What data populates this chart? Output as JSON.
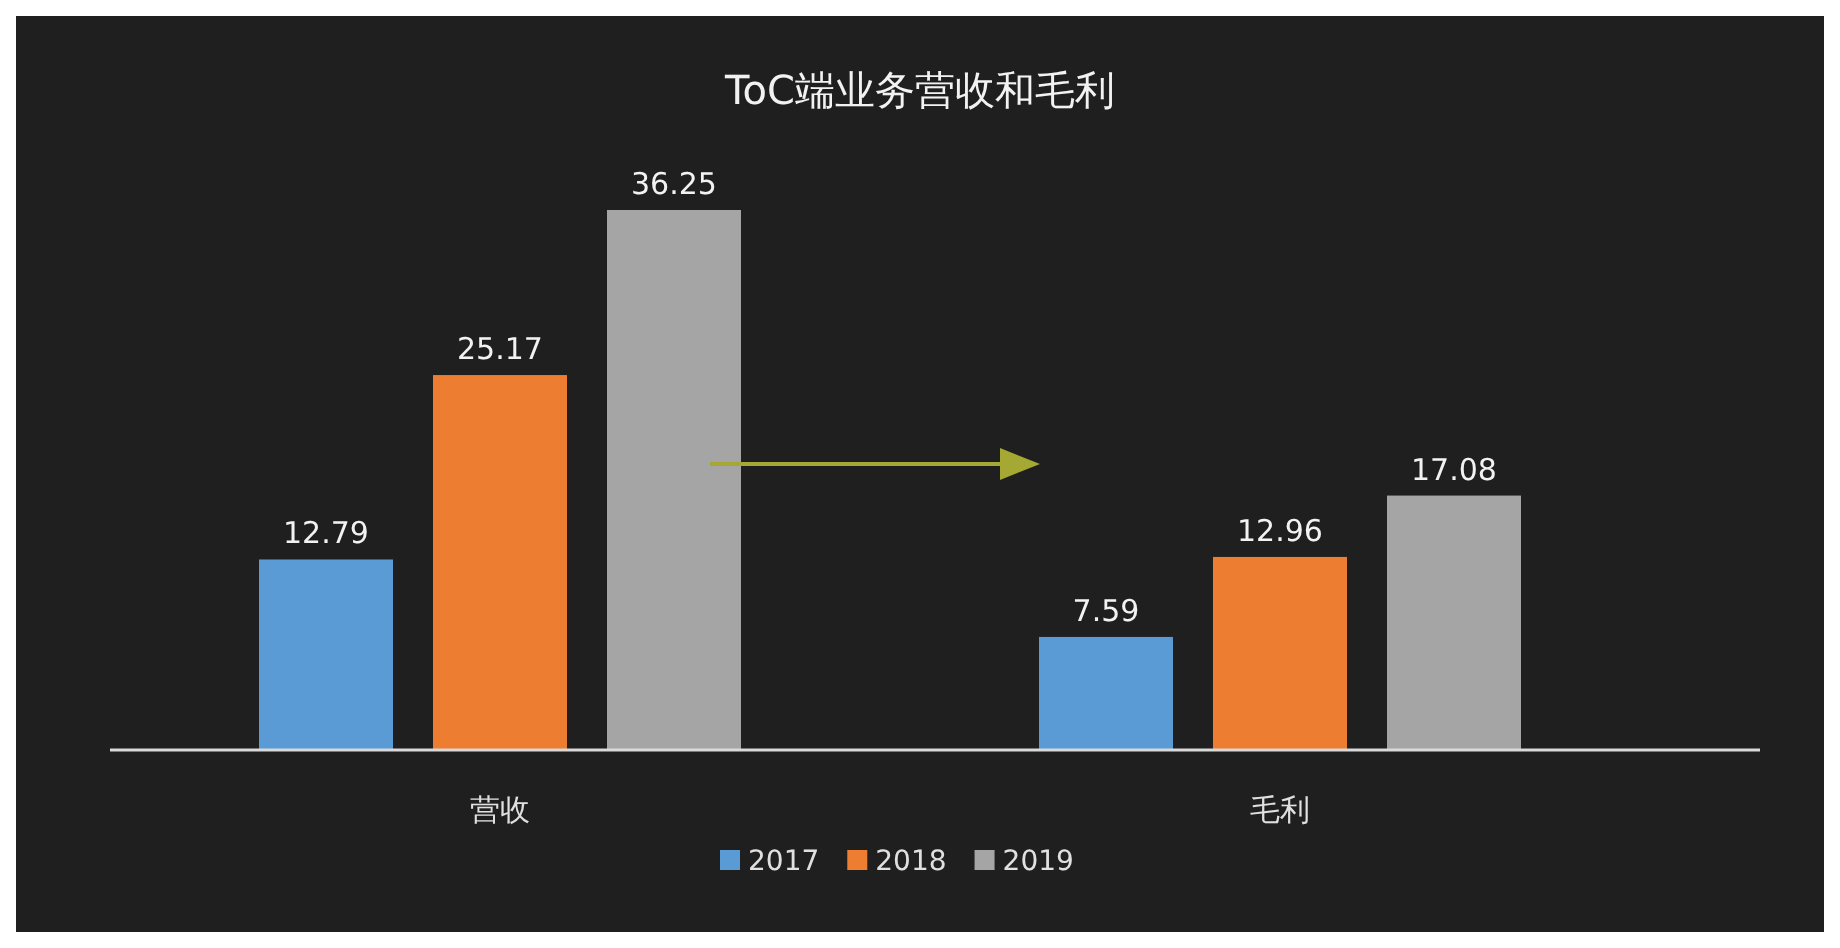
{
  "chart_data": {
    "type": "bar",
    "title": "ToC端业务营收和毛利",
    "categories": [
      "营收",
      "毛利"
    ],
    "series": [
      {
        "name": "2017",
        "color": "#5b9bd5",
        "values": [
          12.79,
          7.59
        ]
      },
      {
        "name": "2018",
        "color": "#ed7d31",
        "values": [
          25.17,
          12.96
        ]
      },
      {
        "name": "2019",
        "color": "#a5a5a5",
        "values": [
          36.25,
          17.08
        ]
      }
    ],
    "data_labels": true,
    "legend": "bottom"
  }
}
